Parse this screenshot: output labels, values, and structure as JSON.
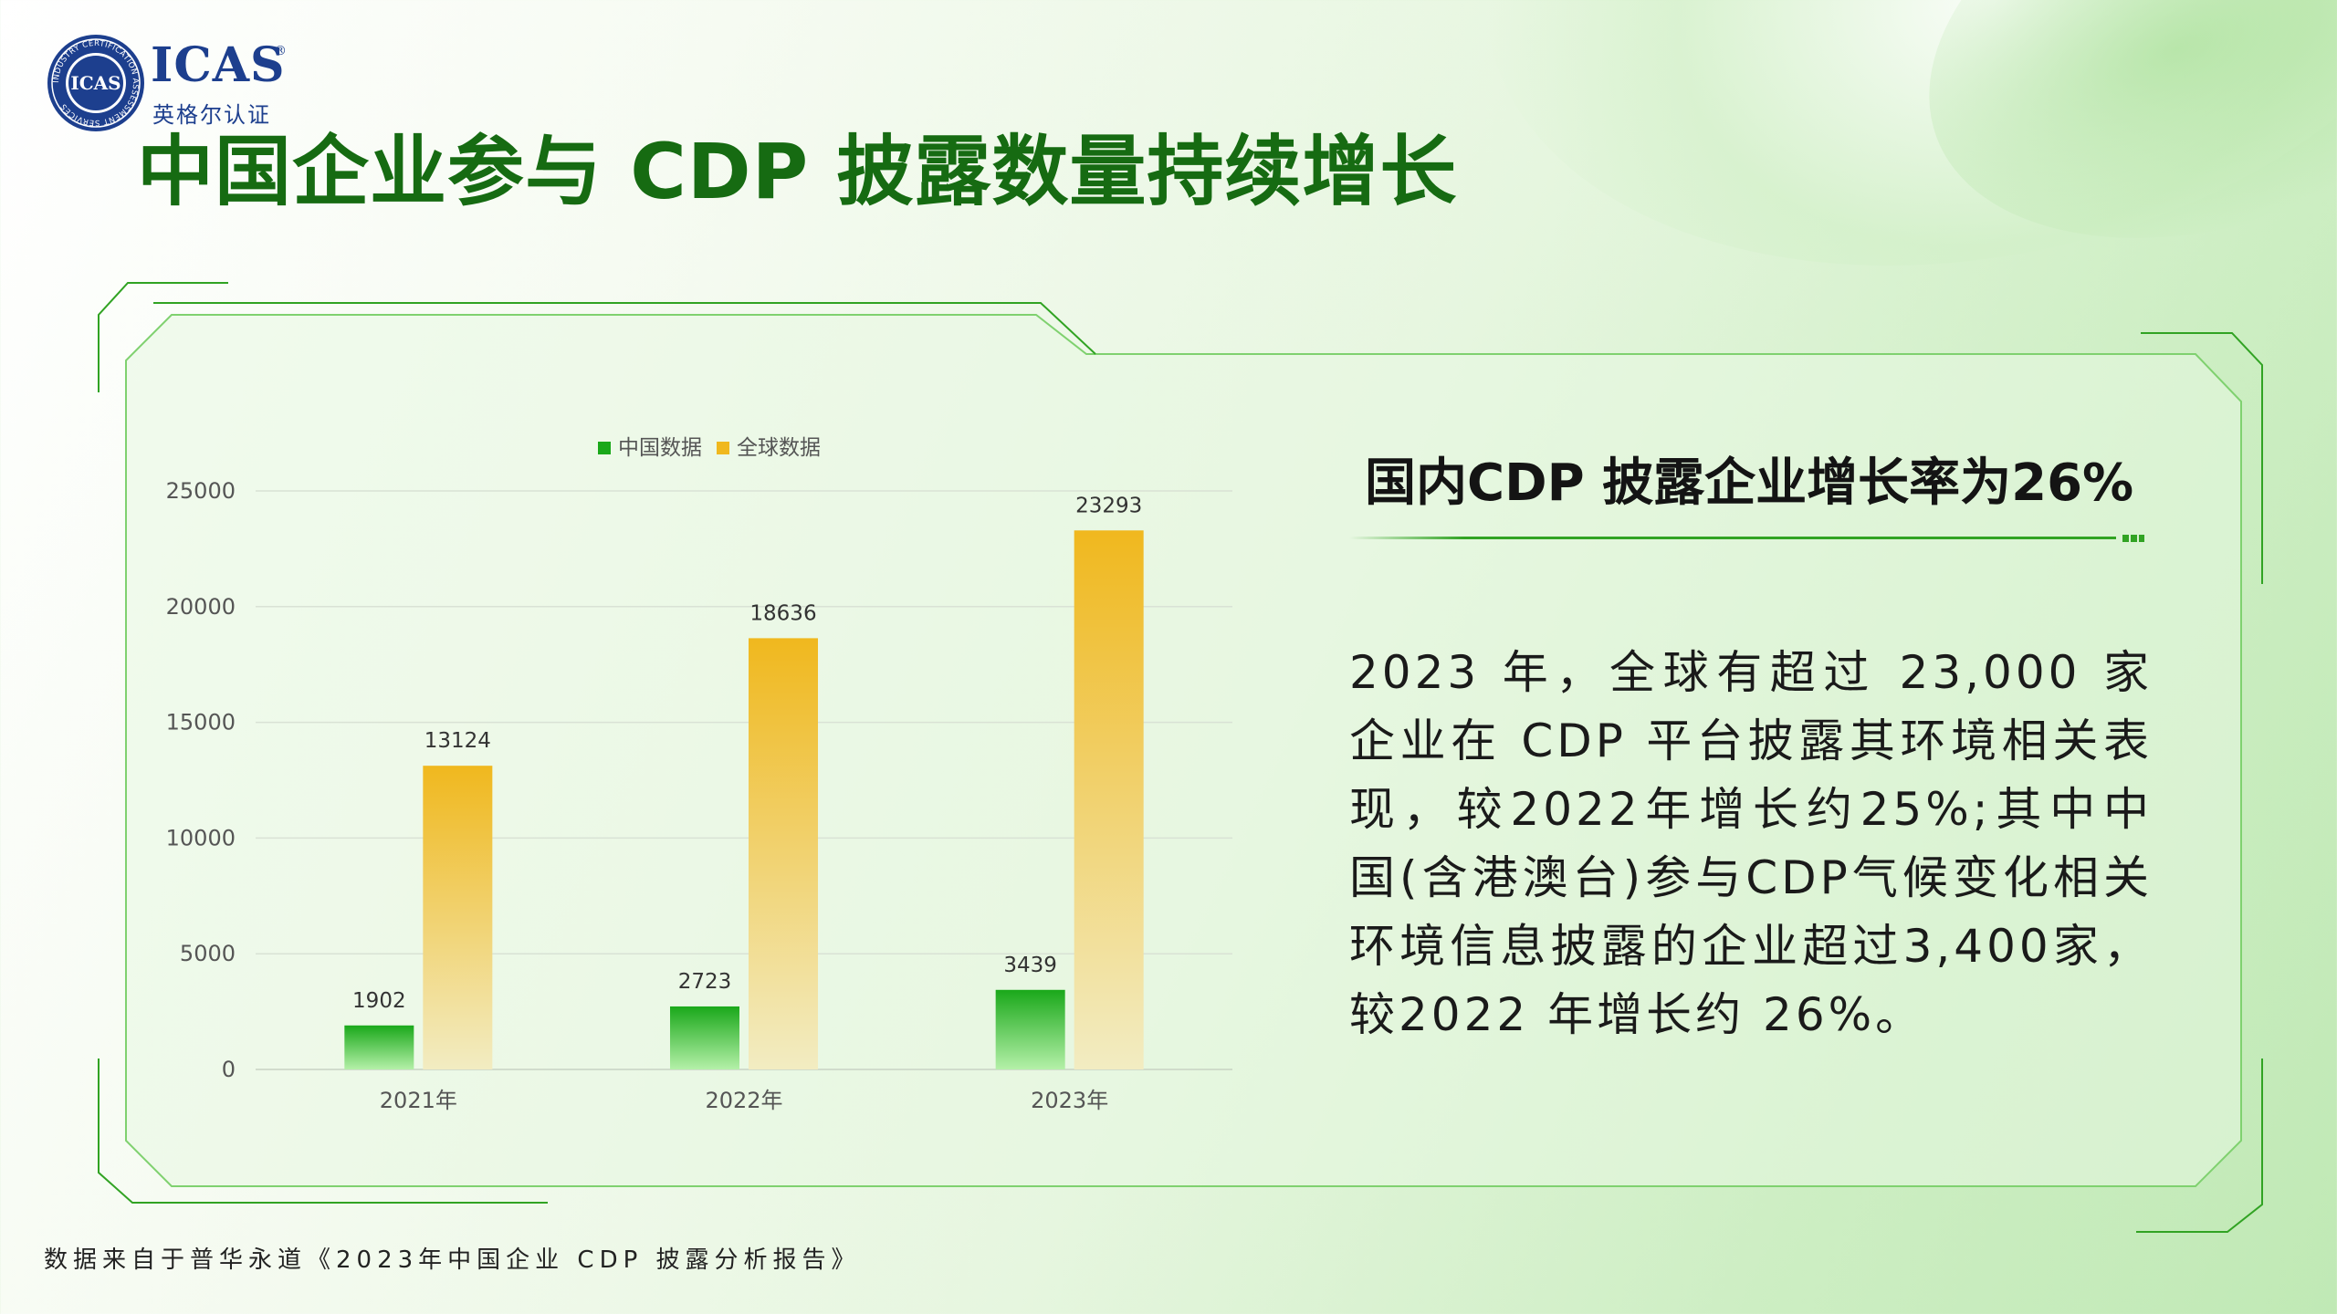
{
  "brand": {
    "name": "ICAS",
    "subtitle_cn": "英格尔认证",
    "seal_text": "INDUSTRY CERTIFICATION ASSESSMENT SERVICES",
    "reg_mark": "®"
  },
  "page": {
    "title": "中国企业参与 CDP 披露数量持续增长",
    "source_note": "数据来自于普华永道《2023年中国企业 CDP 披露分析报告》"
  },
  "side_panel": {
    "heading": "国内CDP 披露企业增长率为26%",
    "body": "2023 年，全球有超过 23,000 家企业在 CDP 平台披露其环境相关表现，较2022年增长约25%;其中中国(含港澳台)参与CDP气候变化相关环境信息披露的企业超过3,400家，较2022 年增长约 26%。"
  },
  "colors": {
    "title_green": "#166b12",
    "frame_green": "#31a323",
    "china_bar_top": "#1aa81a",
    "china_bar_bottom": "#b4f0a8",
    "global_bar_top": "#f0b81e",
    "global_bar_bottom": "#f2ecc2",
    "logo_blue": "#1d3f8e"
  },
  "chart_data": {
    "type": "bar",
    "categories": [
      "2021年",
      "2022年",
      "2023年"
    ],
    "series": [
      {
        "name": "中国数据",
        "values": [
          1902,
          2723,
          3439
        ]
      },
      {
        "name": "全球数据",
        "values": [
          13124,
          18636,
          23293
        ]
      }
    ],
    "ylim": [
      0,
      25000
    ],
    "yticks": [
      "0",
      "5000",
      "10000",
      "15000",
      "20000",
      "25000"
    ],
    "title": "",
    "xlabel": "",
    "ylabel": "",
    "legend": "top-center",
    "grid": true,
    "data_labels": true
  }
}
